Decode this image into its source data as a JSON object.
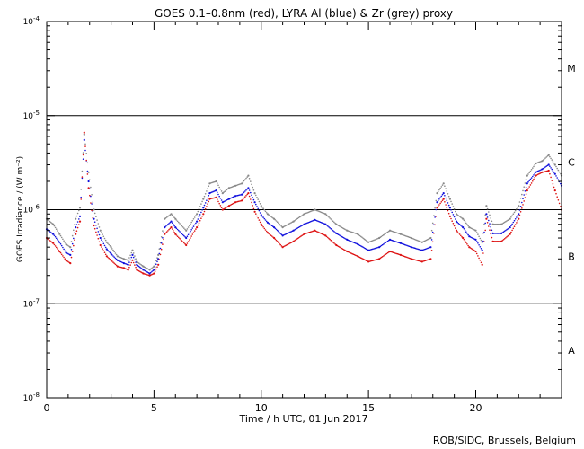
{
  "chart_data": {
    "type": "scatter",
    "title": "GOES 0.1–0.8nm (red), LYRA Al (blue) & Zr (grey) proxy",
    "xlabel": "Time / h UTC, 01 Jun 2017",
    "ylabel": "GOES Irradiance / (W m⁻²)",
    "credit": "ROB/SIDC, Brussels, Belgium",
    "xlim": [
      0,
      24
    ],
    "ylim": [
      1e-08,
      0.0001
    ],
    "yscale": "log",
    "x_ticks": [
      {
        "value": 0,
        "label": "0"
      },
      {
        "value": 5,
        "label": "5"
      },
      {
        "value": 10,
        "label": "10"
      },
      {
        "value": 15,
        "label": "15"
      },
      {
        "value": 20,
        "label": "20"
      }
    ],
    "y_ticks": [
      {
        "value": 1e-08,
        "base": "10",
        "exp": "-8"
      },
      {
        "value": 1e-07,
        "base": "10",
        "exp": "-7"
      },
      {
        "value": 1e-06,
        "base": "10",
        "exp": "-6"
      },
      {
        "value": 1e-05,
        "base": "10",
        "exp": "-5"
      },
      {
        "value": 0.0001,
        "base": "10",
        "exp": "-4"
      }
    ],
    "class_labels": [
      {
        "label": "A",
        "value": 3.2e-08
      },
      {
        "label": "B",
        "value": 3.2e-07
      },
      {
        "label": "C",
        "value": 3.2e-06
      },
      {
        "label": "M",
        "value": 3.2e-05
      }
    ],
    "reference_lines": [
      1e-07,
      1e-06,
      1e-05
    ],
    "series": [
      {
        "color": "#888888",
        "x": [
          0,
          0.3,
          0.6,
          0.9,
          1.1,
          1.35,
          1.55,
          1.75,
          1.95,
          2.2,
          2.5,
          2.8,
          3.0,
          3.3,
          3.6,
          3.8,
          4.0,
          4.2,
          4.5,
          4.8,
          5.0,
          5.2,
          5.5,
          5.8,
          6.0,
          6.5,
          7.0,
          7.3,
          7.6,
          7.9,
          8.2,
          8.5,
          8.8,
          9.1,
          9.4,
          9.7,
          10.0,
          10.3,
          10.6,
          11.0,
          11.5,
          12.0,
          12.5,
          13.0,
          13.5,
          14.0,
          14.5,
          15.0,
          15.5,
          16.0,
          16.5,
          17.0,
          17.5,
          17.9,
          18.2,
          18.5,
          18.8,
          19.1,
          19.4,
          19.7,
          20.0,
          20.3,
          20.5,
          20.8,
          21.2,
          21.6,
          22.0,
          22.4,
          22.8,
          23.1,
          23.4,
          23.7,
          24.0
        ],
        "y": [
          8e-07,
          7e-07,
          5.5e-07,
          4.3e-07,
          4e-07,
          8e-07,
          1.05e-06,
          6.3e-06,
          2.5e-06,
          1e-06,
          6e-07,
          4.5e-07,
          4e-07,
          3.2e-07,
          3e-07,
          2.9e-07,
          3.7e-07,
          2.8e-07,
          2.5e-07,
          2.3e-07,
          2.5e-07,
          3.3e-07,
          8e-07,
          9e-07,
          8e-07,
          6e-07,
          9e-07,
          1.3e-06,
          1.9e-06,
          2e-06,
          1.5e-06,
          1.7e-06,
          1.8e-06,
          1.9e-06,
          2.3e-06,
          1.5e-06,
          1.1e-06,
          9e-07,
          8e-07,
          6.5e-07,
          7.5e-07,
          9e-07,
          1e-06,
          9e-07,
          7e-07,
          6e-07,
          5.5e-07,
          4.5e-07,
          5e-07,
          6e-07,
          5.5e-07,
          5e-07,
          4.5e-07,
          5e-07,
          1.5e-06,
          1.9e-06,
          1.3e-06,
          9e-07,
          8e-07,
          6.5e-07,
          6e-07,
          4.5e-07,
          1.1e-06,
          7e-07,
          7e-07,
          8e-07,
          1.1e-06,
          2.3e-06,
          3.1e-06,
          3.3e-06,
          3.8e-06,
          3e-06,
          2.3e-06
        ]
      },
      {
        "color": "#1010dd",
        "x": [
          0,
          0.3,
          0.6,
          0.9,
          1.1,
          1.35,
          1.55,
          1.75,
          1.95,
          2.2,
          2.5,
          2.8,
          3.0,
          3.3,
          3.6,
          3.8,
          4.0,
          4.2,
          4.5,
          4.8,
          5.0,
          5.2,
          5.5,
          5.8,
          6.0,
          6.5,
          7.0,
          7.3,
          7.6,
          7.9,
          8.2,
          8.5,
          8.8,
          9.1,
          9.4,
          9.7,
          10.0,
          10.3,
          10.6,
          11.0,
          11.5,
          12.0,
          12.5,
          13.0,
          13.5,
          14.0,
          14.5,
          15.0,
          15.5,
          16.0,
          16.5,
          17.0,
          17.5,
          17.9,
          18.2,
          18.5,
          18.8,
          19.1,
          19.4,
          19.7,
          20.0,
          20.3,
          20.5,
          20.8,
          21.2,
          21.6,
          22.0,
          22.4,
          22.8,
          23.1,
          23.4,
          23.7,
          24.0
        ],
        "y": [
          6.2e-07,
          5.5e-07,
          4.5e-07,
          3.5e-07,
          3.3e-07,
          6.5e-07,
          8.5e-07,
          5.5e-06,
          2e-06,
          8e-07,
          5e-07,
          3.8e-07,
          3.4e-07,
          2.9e-07,
          2.7e-07,
          2.6e-07,
          3.3e-07,
          2.6e-07,
          2.3e-07,
          2.1e-07,
          2.3e-07,
          3e-07,
          6.5e-07,
          7.5e-07,
          6.5e-07,
          5e-07,
          7.5e-07,
          1.05e-06,
          1.5e-06,
          1.6e-06,
          1.2e-06,
          1.3e-06,
          1.4e-06,
          1.45e-06,
          1.7e-06,
          1.2e-06,
          8.8e-07,
          7.3e-07,
          6.5e-07,
          5.3e-07,
          6e-07,
          7e-07,
          7.8e-07,
          7e-07,
          5.6e-07,
          4.8e-07,
          4.3e-07,
          3.7e-07,
          4e-07,
          4.8e-07,
          4.4e-07,
          4e-07,
          3.7e-07,
          4e-07,
          1.2e-06,
          1.5e-06,
          1.05e-06,
          7.5e-07,
          6.5e-07,
          5.2e-07,
          4.8e-07,
          3.7e-07,
          9e-07,
          5.6e-07,
          5.6e-07,
          6.5e-07,
          9e-07,
          1.9e-06,
          2.5e-06,
          2.7e-06,
          3e-06,
          2.4e-06,
          1.8e-06
        ]
      },
      {
        "color": "#dd1010",
        "x": [
          0,
          0.3,
          0.6,
          0.9,
          1.1,
          1.35,
          1.55,
          1.75,
          1.95,
          2.2,
          2.5,
          2.8,
          3.0,
          3.3,
          3.6,
          3.8,
          4.0,
          4.2,
          4.5,
          4.8,
          5.0,
          5.2,
          5.5,
          5.8,
          6.0,
          6.5,
          7.0,
          7.3,
          7.6,
          7.9,
          8.2,
          8.5,
          8.8,
          9.1,
          9.4,
          9.7,
          10.0,
          10.3,
          10.6,
          11.0,
          11.5,
          12.0,
          12.5,
          13.0,
          13.5,
          14.0,
          14.5,
          15.0,
          15.5,
          16.0,
          16.5,
          17.0,
          17.5,
          17.9,
          18.2,
          18.5,
          18.8,
          19.1,
          19.4,
          19.7,
          20.0,
          20.3,
          20.5,
          20.8,
          21.2,
          21.6,
          22.0,
          22.4,
          22.8,
          23.1,
          23.4,
          23.7,
          24.0
        ],
        "y": [
          5e-07,
          4.4e-07,
          3.6e-07,
          2.9e-07,
          2.7e-07,
          5.5e-07,
          7.5e-07,
          6.6e-06,
          1.7e-06,
          6.8e-07,
          4.2e-07,
          3.2e-07,
          2.9e-07,
          2.5e-07,
          2.4e-07,
          2.3e-07,
          2.9e-07,
          2.3e-07,
          2.1e-07,
          2e-07,
          2.1e-07,
          2.6e-07,
          5.5e-07,
          6.5e-07,
          5.5e-07,
          4.2e-07,
          6.5e-07,
          9e-07,
          1.3e-06,
          1.35e-06,
          1e-06,
          1.1e-06,
          1.2e-06,
          1.25e-06,
          1.5e-06,
          9.5e-07,
          7e-07,
          5.7e-07,
          5e-07,
          4e-07,
          4.6e-07,
          5.5e-07,
          6e-07,
          5.3e-07,
          4.2e-07,
          3.6e-07,
          3.2e-07,
          2.8e-07,
          3e-07,
          3.6e-07,
          3.3e-07,
          3e-07,
          2.8e-07,
          3e-07,
          1.05e-06,
          1.3e-06,
          8.5e-07,
          6e-07,
          5e-07,
          4e-07,
          3.6e-07,
          2.6e-07,
          8e-07,
          4.6e-07,
          4.6e-07,
          5.5e-07,
          8e-07,
          1.6e-06,
          2.3e-06,
          2.5e-06,
          2.6e-06,
          1.6e-06,
          1e-06
        ]
      }
    ]
  }
}
